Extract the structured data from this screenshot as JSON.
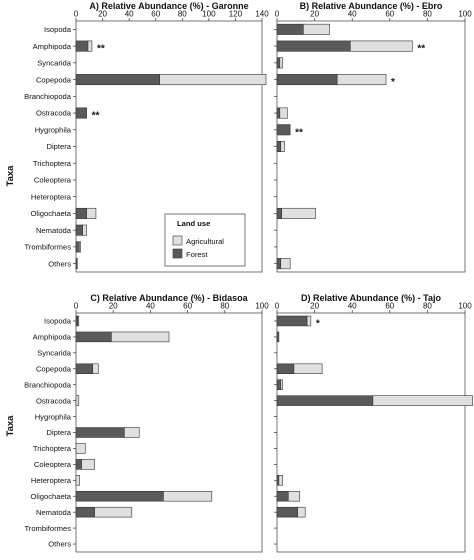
{
  "figure": {
    "y_axis_label": "Taxa",
    "legend": {
      "title": "Land use",
      "items": [
        {
          "name": "Agricultural",
          "color": "#e0e0e0"
        },
        {
          "name": "Forest",
          "color": "#5a5a5a"
        }
      ]
    }
  },
  "chart_data": [
    {
      "id": "A",
      "type": "bar",
      "orientation": "horizontal",
      "stacked": true,
      "title": "A) Relative Abundance (%) - Garonne",
      "ylabel": "Taxa",
      "xlim": [
        0,
        140
      ],
      "xticks": [
        0,
        20,
        40,
        60,
        80,
        100,
        120,
        140
      ],
      "categories": [
        "Isopoda",
        "Amphipoda",
        "Syncarida",
        "Copepoda",
        "Branchiopoda",
        "Ostracoda",
        "Hygrophila",
        "Diptera",
        "Trichoptera",
        "Coleoptera",
        "Heteroptera",
        "Oligochaeta",
        "Nematoda",
        "Trombiformes",
        "Others"
      ],
      "series": [
        {
          "name": "Forest",
          "values": [
            0,
            9,
            0,
            63,
            0,
            8,
            0,
            0,
            0,
            0,
            0,
            8,
            5,
            2.5,
            1
          ]
        },
        {
          "name": "Agricultural",
          "values": [
            0,
            3,
            0,
            80,
            0,
            0,
            0,
            0,
            0,
            0,
            0,
            7,
            3,
            1,
            0
          ]
        }
      ],
      "annotations": [
        {
          "category": "Amphipoda",
          "text": "**"
        },
        {
          "category": "Ostracoda",
          "text": "**"
        }
      ]
    },
    {
      "id": "B",
      "type": "bar",
      "orientation": "horizontal",
      "stacked": true,
      "title": "B) Relative Abundance (%) - Ebro",
      "xlim": [
        0,
        100
      ],
      "xticks": [
        0,
        20,
        40,
        60,
        80,
        100
      ],
      "categories": [
        "Isopoda",
        "Amphipoda",
        "Syncarida",
        "Copepoda",
        "Branchiopoda",
        "Ostracoda",
        "Hygrophila",
        "Diptera",
        "Trichoptera",
        "Coleoptera",
        "Heteroptera",
        "Oligochaeta",
        "Nematoda",
        "Trombiformes",
        "Others"
      ],
      "series": [
        {
          "name": "Forest",
          "values": [
            14,
            39,
            1.5,
            32,
            0,
            1.5,
            7,
            2,
            0,
            0,
            0,
            2.5,
            0,
            0,
            2
          ]
        },
        {
          "name": "Agricultural",
          "values": [
            14,
            33,
            1.5,
            26,
            0,
            4,
            0,
            2,
            0,
            0,
            0,
            18,
            0,
            0,
            5
          ]
        }
      ],
      "annotations": [
        {
          "category": "Amphipoda",
          "text": "**"
        },
        {
          "category": "Copepoda",
          "text": "*"
        },
        {
          "category": "Hygrophila",
          "text": "**"
        }
      ]
    },
    {
      "id": "C",
      "type": "bar",
      "orientation": "horizontal",
      "stacked": true,
      "title": "C) Relative Abundance (%) - Bidasoa",
      "ylabel": "Taxa",
      "xlim": [
        0,
        100
      ],
      "xticks": [
        0,
        20,
        40,
        60,
        80,
        100
      ],
      "categories": [
        "Isopoda",
        "Amphipoda",
        "Syncarida",
        "Copepoda",
        "Branchiopoda",
        "Ostracoda",
        "Hygrophila",
        "Diptera",
        "Trichoptera",
        "Coleoptera",
        "Heteroptera",
        "Oligochaeta",
        "Nematoda",
        "Trombiformes",
        "Others"
      ],
      "series": [
        {
          "name": "Forest",
          "values": [
            1,
            19,
            0,
            9,
            0,
            0,
            0,
            26,
            0,
            3,
            0,
            47,
            10,
            0,
            0
          ]
        },
        {
          "name": "Agricultural",
          "values": [
            0.5,
            31,
            0,
            3,
            0,
            1.5,
            0,
            8,
            5,
            7,
            2,
            26,
            20,
            0,
            0
          ]
        }
      ]
    },
    {
      "id": "D",
      "type": "bar",
      "orientation": "horizontal",
      "stacked": true,
      "title": "D) Relative Abundance (%) - Tajo",
      "xlim": [
        0,
        100
      ],
      "xticks": [
        0,
        20,
        40,
        60,
        80,
        100
      ],
      "categories": [
        "Isopoda",
        "Amphipoda",
        "Syncarida",
        "Copepoda",
        "Branchiopoda",
        "Ostracoda",
        "Hygrophila",
        "Diptera",
        "Trichoptera",
        "Coleoptera",
        "Heteroptera",
        "Oligochaeta",
        "Nematoda",
        "Trombiformes",
        "Others"
      ],
      "series": [
        {
          "name": "Forest",
          "values": [
            16,
            1,
            0,
            9,
            2,
            51,
            0,
            0,
            0,
            0,
            1,
            6,
            11,
            0,
            0
          ]
        },
        {
          "name": "Agricultural",
          "values": [
            2,
            0,
            0,
            15,
            1,
            53,
            0,
            0,
            0,
            0,
            2,
            6,
            4,
            0,
            0
          ]
        }
      ],
      "annotations": [
        {
          "category": "Isopoda",
          "text": "*"
        }
      ]
    }
  ]
}
